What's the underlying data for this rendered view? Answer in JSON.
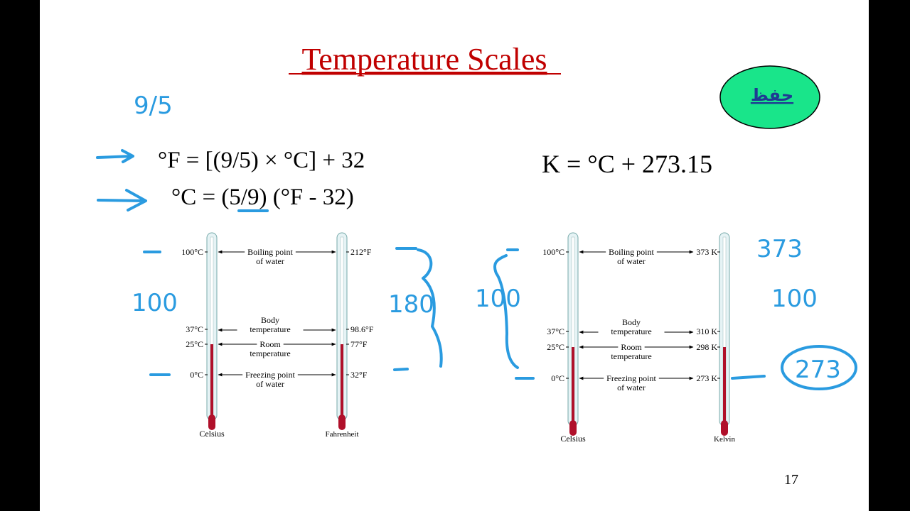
{
  "title": "Temperature Scales",
  "badge": "حفظ",
  "formulas": [
    "°F = [(9/5) × °C] + 32",
    "°C = (5/9) (°F - 32)",
    "K = °C + 273.15"
  ],
  "diagrams": [
    {
      "left_scale": {
        "name": "Celsius",
        "ticks": [
          "100°C",
          "37°C",
          "25°C",
          "0°C"
        ]
      },
      "right_scale": {
        "name": "Fahrenheit",
        "ticks": [
          "212°F",
          "98.6°F",
          "77°F",
          "32°F"
        ]
      },
      "labels": [
        [
          "Boiling point",
          "of water"
        ],
        [
          "Body",
          "temperature"
        ],
        [
          "Room",
          "temperature"
        ],
        [
          "Freezing point",
          "of water"
        ]
      ]
    },
    {
      "left_scale": {
        "name": "Celsius",
        "ticks": [
          "100°C",
          "37°C",
          "25°C",
          "0°C"
        ]
      },
      "right_scale": {
        "name": "Kelvin",
        "ticks": [
          "373 K",
          "310 K",
          "298 K",
          "273 K"
        ]
      },
      "labels": [
        [
          "Boiling point",
          "of water"
        ],
        [
          "Body",
          "temperature"
        ],
        [
          "Room",
          "temperature"
        ],
        [
          "Freezing point",
          "of water"
        ]
      ]
    }
  ],
  "handwriting": [
    "9/5",
    "100",
    "180",
    "100",
    "373",
    "100",
    "273"
  ],
  "page_number": "17"
}
